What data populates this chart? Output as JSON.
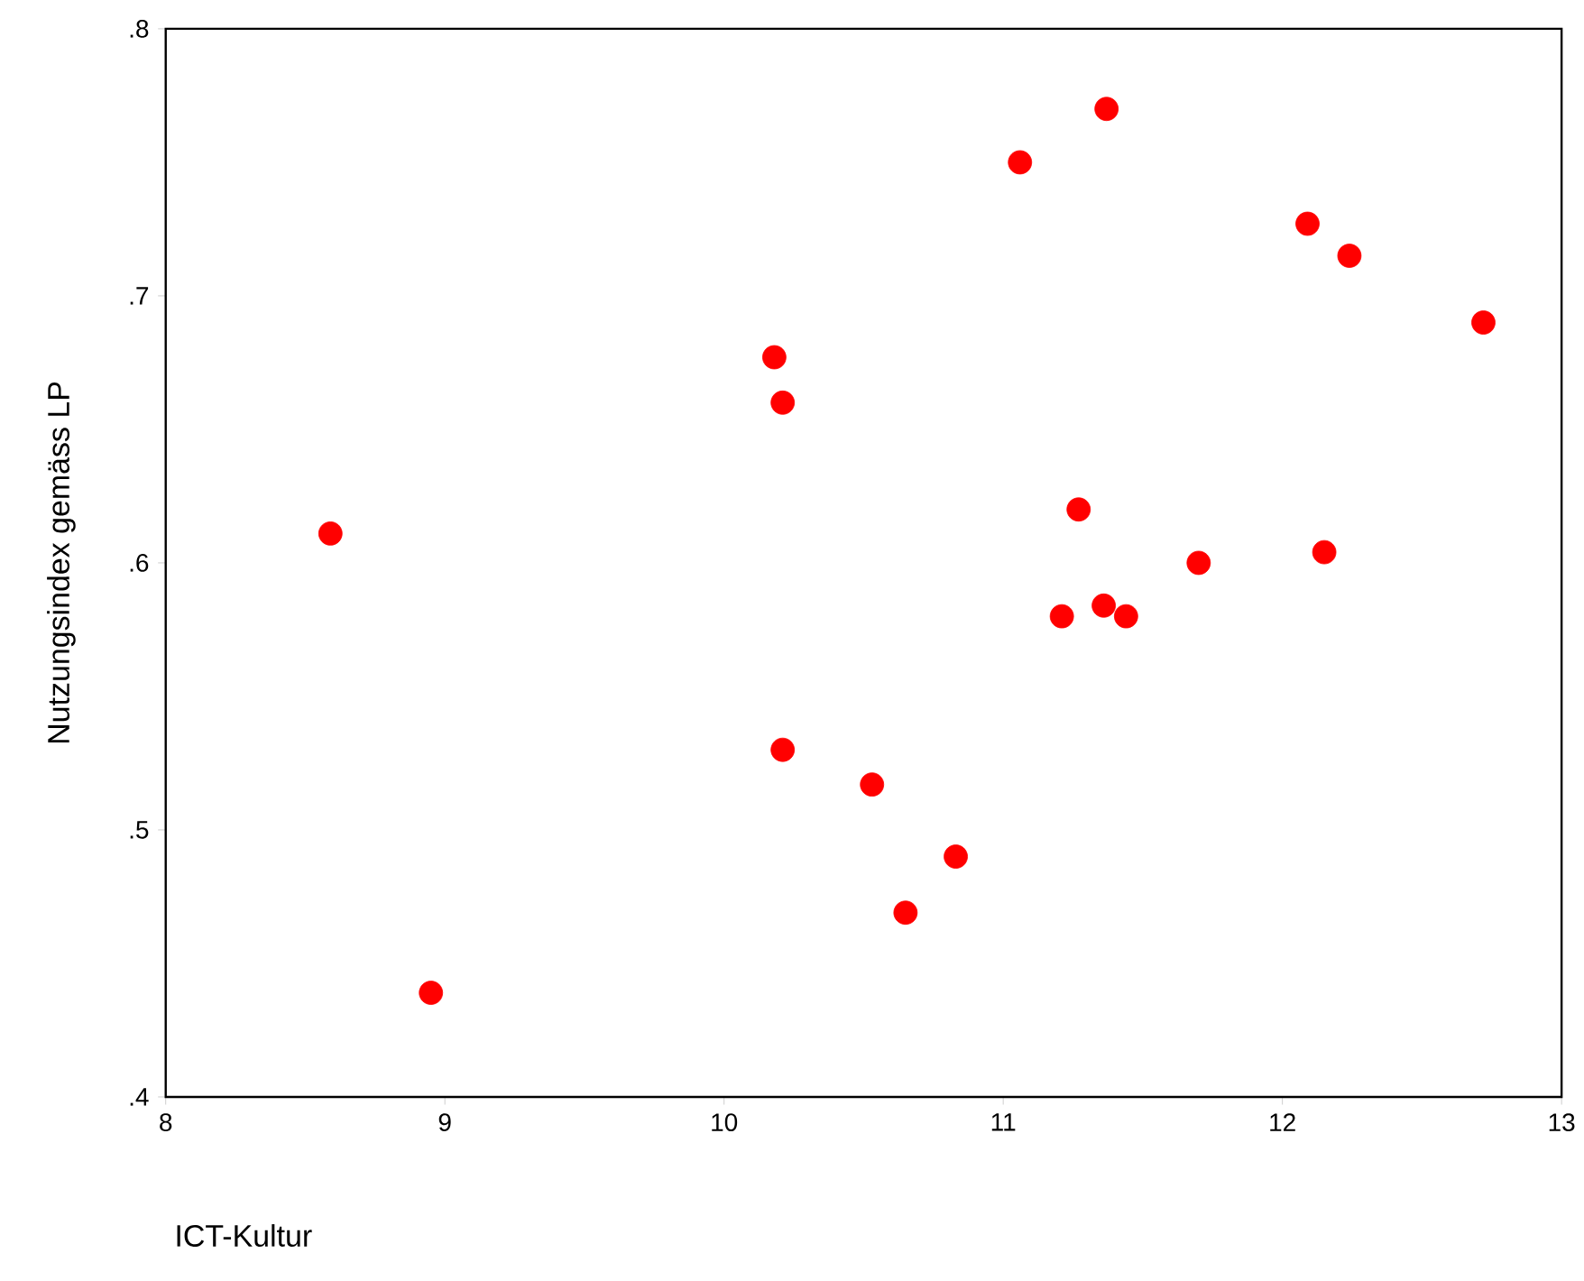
{
  "chart_data": {
    "type": "scatter",
    "xlabel": "ICT-Kultur",
    "ylabel": "Nutzungsindex gemäss LP",
    "x": [
      8.59,
      8.95,
      10.18,
      10.21,
      10.21,
      10.53,
      10.65,
      10.83,
      11.06,
      11.21,
      11.27,
      11.36,
      11.37,
      11.44,
      11.7,
      12.09,
      12.24,
      12.15,
      12.72
    ],
    "values": [
      0.611,
      0.439,
      0.677,
      0.66,
      0.53,
      0.517,
      0.469,
      0.49,
      0.75,
      0.58,
      0.62,
      0.584,
      0.77,
      0.58,
      0.6,
      0.727,
      0.715,
      0.604,
      0.69
    ],
    "color": "#ff0000",
    "grid": false,
    "xlim": [
      8,
      13
    ],
    "ylim": [
      0.4,
      0.8
    ],
    "xticks": [
      8,
      9,
      10,
      11,
      12,
      13
    ],
    "yticks": [
      {
        "value": 0.4,
        "label": ".4"
      },
      {
        "value": 0.5,
        "label": ".5"
      },
      {
        "value": 0.6,
        "label": ".6"
      },
      {
        "value": 0.7,
        "label": ".7"
      },
      {
        "value": 0.8,
        "label": ".8"
      }
    ]
  }
}
